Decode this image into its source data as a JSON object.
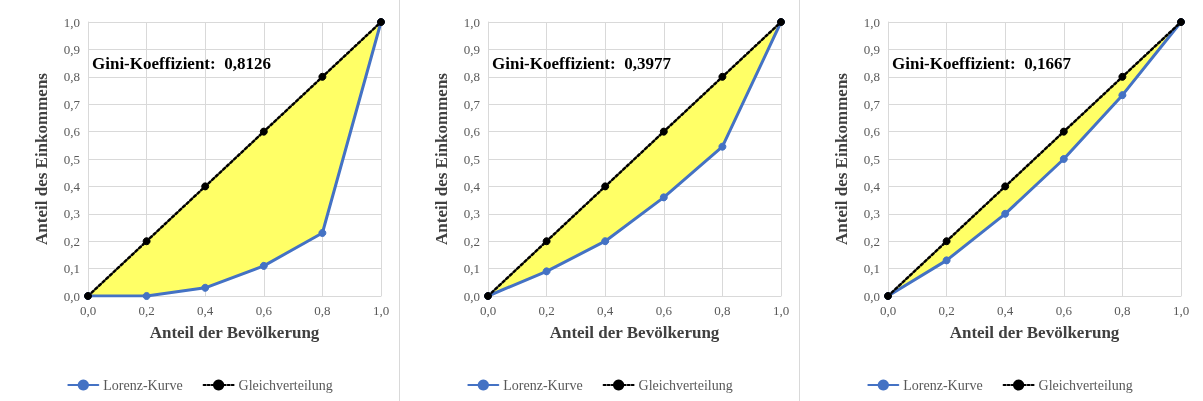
{
  "chart_data": [
    {
      "type": "line",
      "xlabel": "Anteil der Bevölkerung",
      "ylabel": "Anteil des Einkommens",
      "annotations": [
        "Gini-Koeffizient:  0,8126"
      ],
      "x": [
        0,
        0.2,
        0.4,
        0.6,
        0.8,
        1
      ],
      "xlim": [
        0,
        1
      ],
      "ylim": [
        0,
        1
      ],
      "xticks": [
        {
          "value": 0,
          "label": "0,0"
        },
        {
          "value": 0.2,
          "label": "0,2"
        },
        {
          "value": 0.4,
          "label": "0,4"
        },
        {
          "value": 0.6,
          "label": "0,6"
        },
        {
          "value": 0.8,
          "label": "0,8"
        },
        {
          "value": 1,
          "label": "1,0"
        }
      ],
      "yticks": [
        {
          "value": 0,
          "label": "0,0"
        },
        {
          "value": 0.1,
          "label": "0,1"
        },
        {
          "value": 0.2,
          "label": "0,2"
        },
        {
          "value": 0.3,
          "label": "0,3"
        },
        {
          "value": 0.4,
          "label": "0,4"
        },
        {
          "value": 0.5,
          "label": "0,5"
        },
        {
          "value": 0.6,
          "label": "0,6"
        },
        {
          "value": 0.7,
          "label": "0,7"
        },
        {
          "value": 0.8,
          "label": "0,8"
        },
        {
          "value": 0.9,
          "label": "0,9"
        },
        {
          "value": 1,
          "label": "1,0"
        }
      ],
      "grid": true,
      "legend": "bottom",
      "marker": "circle",
      "series": [
        {
          "name": "Lorenz-Kurve",
          "color": "#4472c4",
          "line_style": "solid",
          "values": [
            0,
            0,
            0.03,
            0.11,
            0.23,
            1
          ],
          "lower": [
            0,
            0,
            0.03,
            0.11,
            0.23,
            1
          ],
          "upper": [
            0,
            0.2,
            0.4,
            0.6,
            0.8,
            1
          ]
        },
        {
          "name": "Gleichverteilung",
          "color": "#000000",
          "line_style": "dotted",
          "values": [
            0,
            0.2,
            0.4,
            0.6,
            0.8,
            1
          ]
        }
      ]
    },
    {
      "type": "line",
      "xlabel": "Anteil der Bevölkerung",
      "ylabel": "Anteil des Einkommens",
      "annotations": [
        "Gini-Koeffizient:  0,3977"
      ],
      "x": [
        0,
        0.2,
        0.4,
        0.6,
        0.8,
        1
      ],
      "xlim": [
        0,
        1
      ],
      "ylim": [
        0,
        1
      ],
      "xticks": [
        {
          "value": 0,
          "label": "0,0"
        },
        {
          "value": 0.2,
          "label": "0,2"
        },
        {
          "value": 0.4,
          "label": "0,4"
        },
        {
          "value": 0.6,
          "label": "0,6"
        },
        {
          "value": 0.8,
          "label": "0,8"
        },
        {
          "value": 1,
          "label": "1,0"
        }
      ],
      "yticks": [
        {
          "value": 0,
          "label": "0,0"
        },
        {
          "value": 0.1,
          "label": "0,1"
        },
        {
          "value": 0.2,
          "label": "0,2"
        },
        {
          "value": 0.3,
          "label": "0,3"
        },
        {
          "value": 0.4,
          "label": "0,4"
        },
        {
          "value": 0.5,
          "label": "0,5"
        },
        {
          "value": 0.6,
          "label": "0,6"
        },
        {
          "value": 0.7,
          "label": "0,7"
        },
        {
          "value": 0.8,
          "label": "0,8"
        },
        {
          "value": 0.9,
          "label": "0,9"
        },
        {
          "value": 1,
          "label": "1,0"
        }
      ],
      "grid": true,
      "legend": "bottom",
      "marker": "circle",
      "series": [
        {
          "name": "Lorenz-Kurve",
          "color": "#4472c4",
          "line_style": "solid",
          "values": [
            0,
            0.09,
            0.2,
            0.36,
            0.545,
            1
          ],
          "lower": [
            0,
            0.09,
            0.2,
            0.36,
            0.545,
            1
          ],
          "upper": [
            0,
            0.2,
            0.4,
            0.6,
            0.8,
            1
          ]
        },
        {
          "name": "Gleichverteilung",
          "color": "#000000",
          "line_style": "dotted",
          "values": [
            0,
            0.2,
            0.4,
            0.6,
            0.8,
            1
          ]
        }
      ]
    },
    {
      "type": "line",
      "xlabel": "Anteil der Bevölkerung",
      "ylabel": "Anteil des Einkommens",
      "annotations": [
        "Gini-Koeffizient:  0,1667"
      ],
      "x": [
        0,
        0.2,
        0.4,
        0.6,
        0.8,
        1
      ],
      "xlim": [
        0,
        1
      ],
      "ylim": [
        0,
        1
      ],
      "xticks": [
        {
          "value": 0,
          "label": "0,0"
        },
        {
          "value": 0.2,
          "label": "0,2"
        },
        {
          "value": 0.4,
          "label": "0,4"
        },
        {
          "value": 0.6,
          "label": "0,6"
        },
        {
          "value": 0.8,
          "label": "0,8"
        },
        {
          "value": 1,
          "label": "1,0"
        }
      ],
      "yticks": [
        {
          "value": 0,
          "label": "0,0"
        },
        {
          "value": 0.1,
          "label": "0,1"
        },
        {
          "value": 0.2,
          "label": "0,2"
        },
        {
          "value": 0.3,
          "label": "0,3"
        },
        {
          "value": 0.4,
          "label": "0,4"
        },
        {
          "value": 0.5,
          "label": "0,5"
        },
        {
          "value": 0.6,
          "label": "0,6"
        },
        {
          "value": 0.7,
          "label": "0,7"
        },
        {
          "value": 0.8,
          "label": "0,8"
        },
        {
          "value": 0.9,
          "label": "0,9"
        },
        {
          "value": 1,
          "label": "1,0"
        }
      ],
      "grid": true,
      "legend": "bottom",
      "marker": "circle",
      "series": [
        {
          "name": "Lorenz-Kurve",
          "color": "#4472c4",
          "line_style": "solid",
          "values": [
            0,
            0.13,
            0.3,
            0.5,
            0.733,
            1
          ],
          "lower": [
            0,
            0.13,
            0.3,
            0.5,
            0.733,
            1
          ],
          "upper": [
            0,
            0.2,
            0.4,
            0.6,
            0.8,
            1
          ]
        },
        {
          "name": "Gleichverteilung",
          "color": "#000000",
          "line_style": "dotted",
          "values": [
            0,
            0.2,
            0.4,
            0.6,
            0.8,
            1
          ]
        }
      ]
    }
  ]
}
